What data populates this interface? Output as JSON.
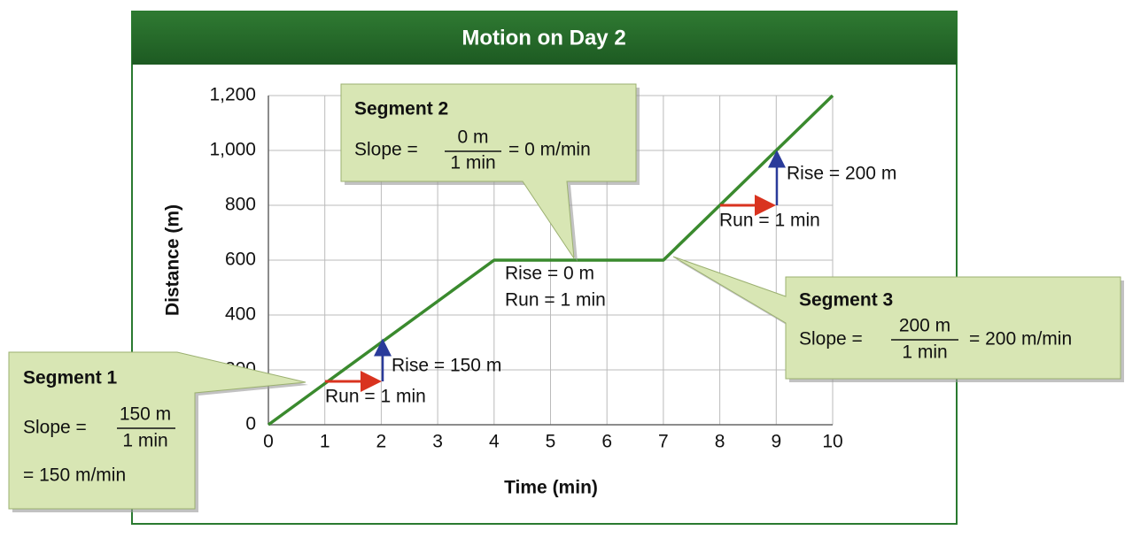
{
  "chart_data": {
    "type": "line",
    "title": "Motion on Day 2",
    "xlabel": "Time (min)",
    "ylabel": "Distance (m)",
    "x": [
      0,
      1,
      2,
      3,
      4,
      5,
      6,
      7,
      8,
      9,
      10
    ],
    "series": [
      {
        "name": "Distance",
        "color": "#3a8a2e",
        "values": [
          0,
          150,
          300,
          450,
          600,
          600,
          600,
          600,
          800,
          1000,
          1200
        ]
      }
    ],
    "xlim": [
      0,
      10
    ],
    "xticks": [
      0,
      1,
      2,
      3,
      4,
      5,
      6,
      7,
      8,
      9,
      10
    ],
    "ylim": [
      0,
      1200
    ],
    "yticks": [
      0,
      200,
      400,
      600,
      800,
      {
        "value": 1000,
        "label": "1,000"
      },
      {
        "value": 1200,
        "label": "1,200"
      }
    ],
    "grid": true,
    "annotations": [
      {
        "title": "Segment 1",
        "slope": "Slope =",
        "numerator": "150 m",
        "denominator": "1 min",
        "result": "= 150 m/min"
      },
      {
        "title": "Segment 2",
        "slope": "Slope =",
        "numerator": "0 m",
        "denominator": "1 min",
        "result": "= 0 m/min"
      },
      {
        "title": "Segment 3",
        "slope": "Slope =",
        "numerator": "200 m",
        "denominator": "1 min",
        "result": "= 200 m/min"
      }
    ],
    "rise_run": [
      {
        "rise": "Rise = 150 m",
        "run": "Run = 1 min"
      },
      {
        "rise": "Rise = 0 m",
        "run": "Run = 1 min"
      },
      {
        "rise": "Rise = 200 m",
        "run": "Run = 1 min"
      }
    ]
  }
}
